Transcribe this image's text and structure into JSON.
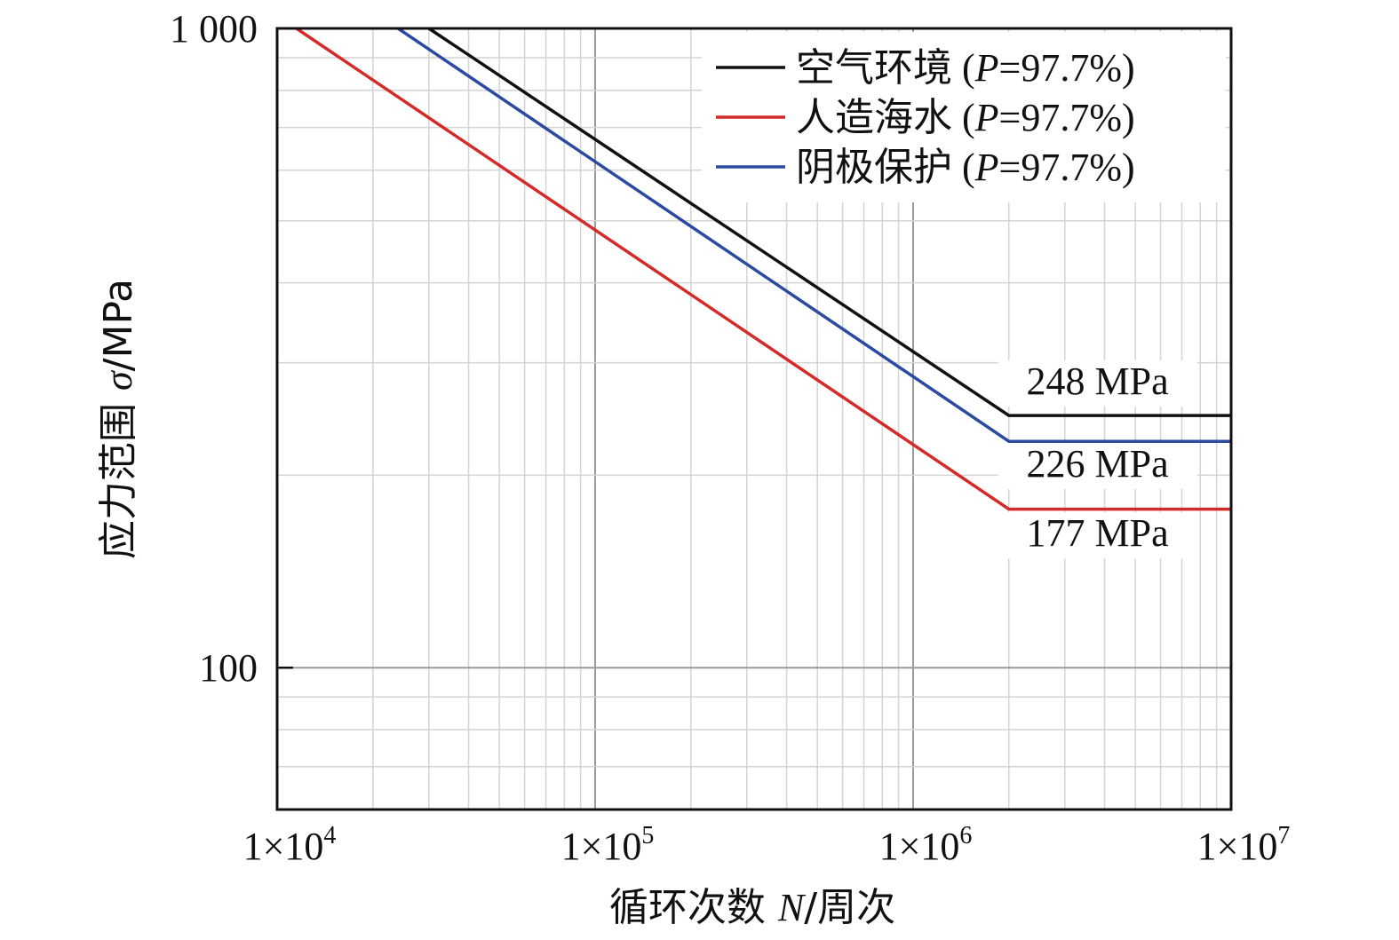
{
  "chart_data": {
    "type": "line",
    "x_scale": "log",
    "y_scale": "log",
    "xlim": [
      10000,
      10000000
    ],
    "ylim": [
      60,
      1000
    ],
    "grid": true,
    "legend_position": "top-right",
    "xlabel": {
      "prefix": "循环次数 ",
      "var": "N",
      "suffix": "/周次"
    },
    "ylabel": {
      "prefix": "应力范围 ",
      "var": "σ",
      "suffix": "/MPa"
    },
    "x_ticks": [
      {
        "value": 10000,
        "base": "1×10",
        "exp": "4"
      },
      {
        "value": 100000,
        "base": "1×10",
        "exp": "5"
      },
      {
        "value": 1000000,
        "base": "1×10",
        "exp": "6"
      },
      {
        "value": 10000000,
        "base": "1×10",
        "exp": "7"
      }
    ],
    "y_ticks": [
      {
        "value": 100,
        "label": "100"
      },
      {
        "value": 1000,
        "label": "1 000"
      }
    ],
    "series": [
      {
        "name": "空气环境",
        "name_suffix": {
          "open": " (",
          "var": "P",
          "rest": "=97.7%)"
        },
        "color": "#111111",
        "x": [
          30000,
          2000000,
          10000000
        ],
        "y": [
          1000,
          248,
          248
        ]
      },
      {
        "name": "人造海水",
        "name_suffix": {
          "open": " (",
          "var": "P",
          "rest": "=97.7%)"
        },
        "color": "#d42a2a",
        "x": [
          11500,
          2000000,
          10000000
        ],
        "y": [
          1000,
          177,
          177
        ]
      },
      {
        "name": "阴极保护",
        "name_suffix": {
          "open": " (",
          "var": "P",
          "rest": "=97.7%)"
        },
        "color": "#2b4aa0",
        "x": [
          24000,
          2000000,
          10000000
        ],
        "y": [
          1000,
          226,
          226
        ]
      }
    ],
    "annotations": [
      {
        "text": "248 MPa",
        "x": 3800000,
        "y": 268
      },
      {
        "text": "226 MPa",
        "x": 3800000,
        "y": 199
      },
      {
        "text": "177 MPa",
        "x": 3800000,
        "y": 155
      }
    ]
  }
}
